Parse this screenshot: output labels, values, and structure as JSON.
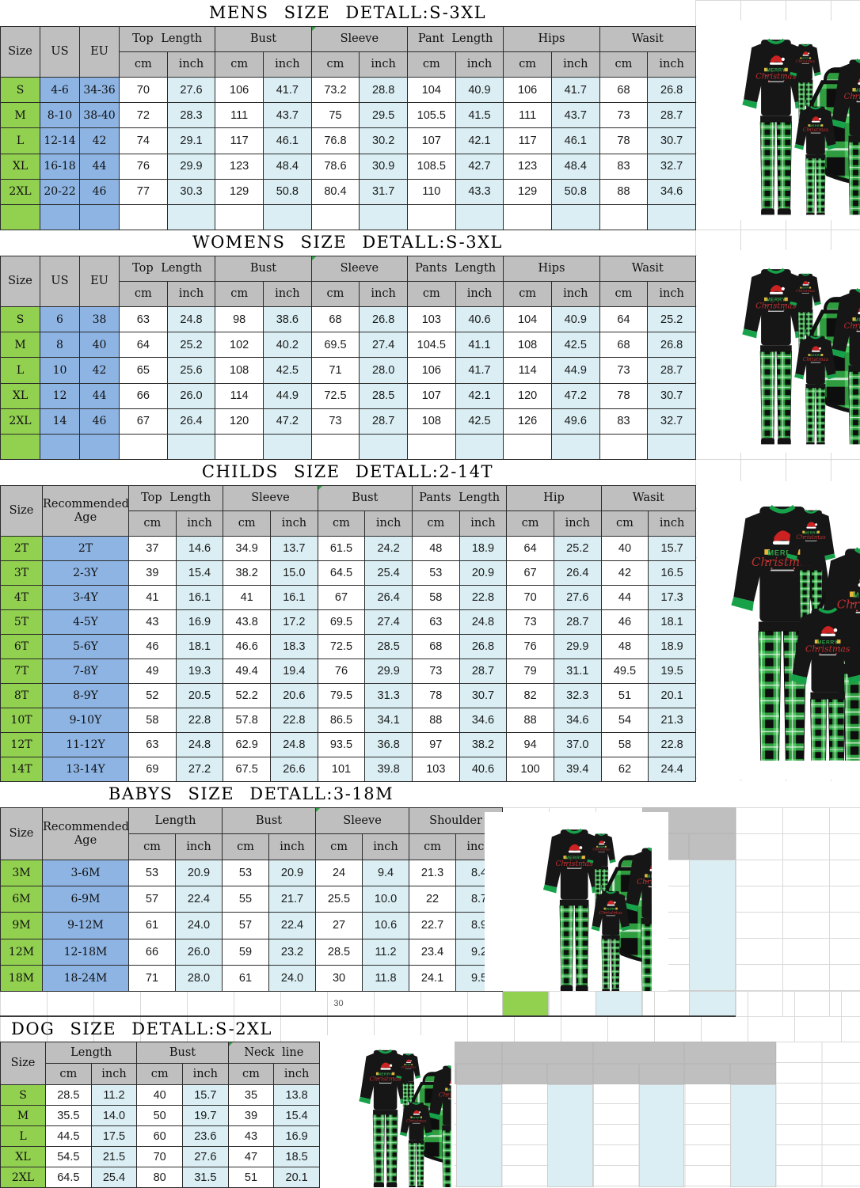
{
  "colors": {
    "header_gray": "#BFBFBF",
    "size_green": "#92D050",
    "lead_blue": "#8DB4E3",
    "row_light_blue": "#DAEEF3",
    "border_black": "#2b2b2b",
    "ghost_grid": "#D9D9D9",
    "plaid_green": "#2e9c3f",
    "top_black": "#161616",
    "trim_green": "#17a24a"
  },
  "stray_cell_value": "30",
  "product_image": {
    "print_word1": "MERRY",
    "print_word2": "Christmas"
  },
  "tables": [
    {
      "id": "mens",
      "title": "MENS SIZE DETALL:S-3XL",
      "lead_headers": [
        "Size",
        "US",
        "EU"
      ],
      "groups": [
        "Top Length",
        "Bust",
        "Sleeve",
        "Pant Length",
        "Hips",
        "Wasit"
      ],
      "unit_headers": [
        "cm",
        "inch"
      ],
      "rows": [
        {
          "lead": [
            "S",
            "4-6",
            "34-36"
          ],
          "values": [
            "70",
            "27.6",
            "106",
            "41.7",
            "73.2",
            "28.8",
            "104",
            "40.9",
            "106",
            "41.7",
            "68",
            "26.8"
          ]
        },
        {
          "lead": [
            "M",
            "8-10",
            "38-40"
          ],
          "values": [
            "72",
            "28.3",
            "111",
            "43.7",
            "75",
            "29.5",
            "105.5",
            "41.5",
            "111",
            "43.7",
            "73",
            "28.7"
          ]
        },
        {
          "lead": [
            "L",
            "12-14",
            "42"
          ],
          "values": [
            "74",
            "29.1",
            "117",
            "46.1",
            "76.8",
            "30.2",
            "107",
            "42.1",
            "117",
            "46.1",
            "78",
            "30.7"
          ]
        },
        {
          "lead": [
            "XL",
            "16-18",
            "44"
          ],
          "values": [
            "76",
            "29.9",
            "123",
            "48.4",
            "78.6",
            "30.9",
            "108.5",
            "42.7",
            "123",
            "48.4",
            "83",
            "32.7"
          ]
        },
        {
          "lead": [
            "2XL",
            "20-22",
            "46"
          ],
          "values": [
            "77",
            "30.3",
            "129",
            "50.8",
            "80.4",
            "31.7",
            "110",
            "43.3",
            "129",
            "50.8",
            "88",
            "34.6"
          ]
        }
      ],
      "has_trailing_empty_row": true
    },
    {
      "id": "womens",
      "title": "WOMENS SIZE DETALL:S-3XL",
      "lead_headers": [
        "Size",
        "US",
        "EU"
      ],
      "groups": [
        "Top Length",
        "Bust",
        "Sleeve",
        "Pants Length",
        "Hips",
        "Wasit"
      ],
      "unit_headers": [
        "cm",
        "inch"
      ],
      "rows": [
        {
          "lead": [
            "S",
            "6",
            "38"
          ],
          "values": [
            "63",
            "24.8",
            "98",
            "38.6",
            "68",
            "26.8",
            "103",
            "40.6",
            "104",
            "40.9",
            "64",
            "25.2"
          ]
        },
        {
          "lead": [
            "M",
            "8",
            "40"
          ],
          "values": [
            "64",
            "25.2",
            "102",
            "40.2",
            "69.5",
            "27.4",
            "104.5",
            "41.1",
            "108",
            "42.5",
            "68",
            "26.8"
          ]
        },
        {
          "lead": [
            "L",
            "10",
            "42"
          ],
          "values": [
            "65",
            "25.6",
            "108",
            "42.5",
            "71",
            "28.0",
            "106",
            "41.7",
            "114",
            "44.9",
            "73",
            "28.7"
          ]
        },
        {
          "lead": [
            "XL",
            "12",
            "44"
          ],
          "values": [
            "66",
            "26.0",
            "114",
            "44.9",
            "72.5",
            "28.5",
            "107",
            "42.1",
            "120",
            "47.2",
            "78",
            "30.7"
          ]
        },
        {
          "lead": [
            "2XL",
            "14",
            "46"
          ],
          "values": [
            "67",
            "26.4",
            "120",
            "47.2",
            "73",
            "28.7",
            "108",
            "42.5",
            "126",
            "49.6",
            "83",
            "32.7"
          ]
        }
      ],
      "has_trailing_empty_row": true
    },
    {
      "id": "childs",
      "title": "CHILDS SIZE DETALL:2-14T",
      "lead_headers": [
        "Size",
        "Recommended Age"
      ],
      "groups": [
        "Top Length",
        "Sleeve",
        "Bust",
        "Pants Length",
        "Hip",
        "Wasit"
      ],
      "unit_headers": [
        "cm",
        "inch"
      ],
      "rows": [
        {
          "lead": [
            "2T",
            "2T"
          ],
          "values": [
            "37",
            "14.6",
            "34.9",
            "13.7",
            "61.5",
            "24.2",
            "48",
            "18.9",
            "64",
            "25.2",
            "40",
            "15.7"
          ]
        },
        {
          "lead": [
            "3T",
            "2-3Y"
          ],
          "values": [
            "39",
            "15.4",
            "38.2",
            "15.0",
            "64.5",
            "25.4",
            "53",
            "20.9",
            "67",
            "26.4",
            "42",
            "16.5"
          ]
        },
        {
          "lead": [
            "4T",
            "3-4Y"
          ],
          "values": [
            "41",
            "16.1",
            "41",
            "16.1",
            "67",
            "26.4",
            "58",
            "22.8",
            "70",
            "27.6",
            "44",
            "17.3"
          ]
        },
        {
          "lead": [
            "5T",
            "4-5Y"
          ],
          "values": [
            "43",
            "16.9",
            "43.8",
            "17.2",
            "69.5",
            "27.4",
            "63",
            "24.8",
            "73",
            "28.7",
            "46",
            "18.1"
          ]
        },
        {
          "lead": [
            "6T",
            "5-6Y"
          ],
          "values": [
            "46",
            "18.1",
            "46.6",
            "18.3",
            "72.5",
            "28.5",
            "68",
            "26.8",
            "76",
            "29.9",
            "48",
            "18.9"
          ]
        },
        {
          "lead": [
            "7T",
            "7-8Y"
          ],
          "values": [
            "49",
            "19.3",
            "49.4",
            "19.4",
            "76",
            "29.9",
            "73",
            "28.7",
            "79",
            "31.1",
            "49.5",
            "19.5"
          ]
        },
        {
          "lead": [
            "8T",
            "8-9Y"
          ],
          "values": [
            "52",
            "20.5",
            "52.2",
            "20.6",
            "79.5",
            "31.3",
            "78",
            "30.7",
            "82",
            "32.3",
            "51",
            "20.1"
          ]
        },
        {
          "lead": [
            "10T",
            "9-10Y"
          ],
          "values": [
            "58",
            "22.8",
            "57.8",
            "22.8",
            "86.5",
            "34.1",
            "88",
            "34.6",
            "88",
            "34.6",
            "54",
            "21.3"
          ]
        },
        {
          "lead": [
            "12T",
            "11-12Y"
          ],
          "values": [
            "63",
            "24.8",
            "62.9",
            "24.8",
            "93.5",
            "36.8",
            "97",
            "38.2",
            "94",
            "37.0",
            "58",
            "22.8"
          ]
        },
        {
          "lead": [
            "14T",
            "13-14Y"
          ],
          "values": [
            "69",
            "27.2",
            "67.5",
            "26.6",
            "101",
            "39.8",
            "103",
            "40.6",
            "100",
            "39.4",
            "62",
            "24.4"
          ]
        }
      ],
      "has_trailing_empty_row": false
    },
    {
      "id": "babys",
      "title": "BABYS SIZE DETALL:3-18M",
      "lead_headers": [
        "Size",
        "Recommended Age"
      ],
      "groups": [
        "Length",
        "Bust",
        "Sleeve",
        "Shoulder"
      ],
      "unit_headers": [
        "cm",
        "inch"
      ],
      "rows": [
        {
          "lead": [
            "3M",
            "3-6M"
          ],
          "values": [
            "53",
            "20.9",
            "53",
            "20.9",
            "24",
            "9.4",
            "21.3",
            "8.4"
          ]
        },
        {
          "lead": [
            "6M",
            "6-9M"
          ],
          "values": [
            "57",
            "22.4",
            "55",
            "21.7",
            "25.5",
            "10.0",
            "22",
            "8.7"
          ]
        },
        {
          "lead": [
            "9M",
            "9-12M"
          ],
          "values": [
            "61",
            "24.0",
            "57",
            "22.4",
            "27",
            "10.6",
            "22.7",
            "8.9"
          ]
        },
        {
          "lead": [
            "12M",
            "12-18M"
          ],
          "values": [
            "66",
            "26.0",
            "59",
            "23.2",
            "28.5",
            "11.2",
            "23.4",
            "9.2"
          ]
        },
        {
          "lead": [
            "18M",
            "18-24M"
          ],
          "values": [
            "71",
            "28.0",
            "61",
            "24.0",
            "30",
            "11.8",
            "24.1",
            "9.5"
          ]
        }
      ],
      "has_trailing_empty_row": false
    },
    {
      "id": "dog",
      "title": "DOG SIZE DETALL:S-2XL",
      "lead_headers": [
        "Size"
      ],
      "groups": [
        "Length",
        "Bust",
        "Neck line"
      ],
      "unit_headers": [
        "cm",
        "inch"
      ],
      "rows": [
        {
          "lead": [
            "S"
          ],
          "values": [
            "28.5",
            "11.2",
            "40",
            "15.7",
            "35",
            "13.8"
          ]
        },
        {
          "lead": [
            "M"
          ],
          "values": [
            "35.5",
            "14.0",
            "50",
            "19.7",
            "39",
            "15.4"
          ]
        },
        {
          "lead": [
            "L"
          ],
          "values": [
            "44.5",
            "17.5",
            "60",
            "23.6",
            "43",
            "16.9"
          ]
        },
        {
          "lead": [
            "XL"
          ],
          "values": [
            "54.5",
            "21.5",
            "70",
            "27.6",
            "47",
            "18.5"
          ]
        },
        {
          "lead": [
            "2XL"
          ],
          "values": [
            "64.5",
            "25.4",
            "80",
            "31.5",
            "51",
            "20.1"
          ]
        }
      ],
      "has_trailing_empty_row": false
    }
  ]
}
